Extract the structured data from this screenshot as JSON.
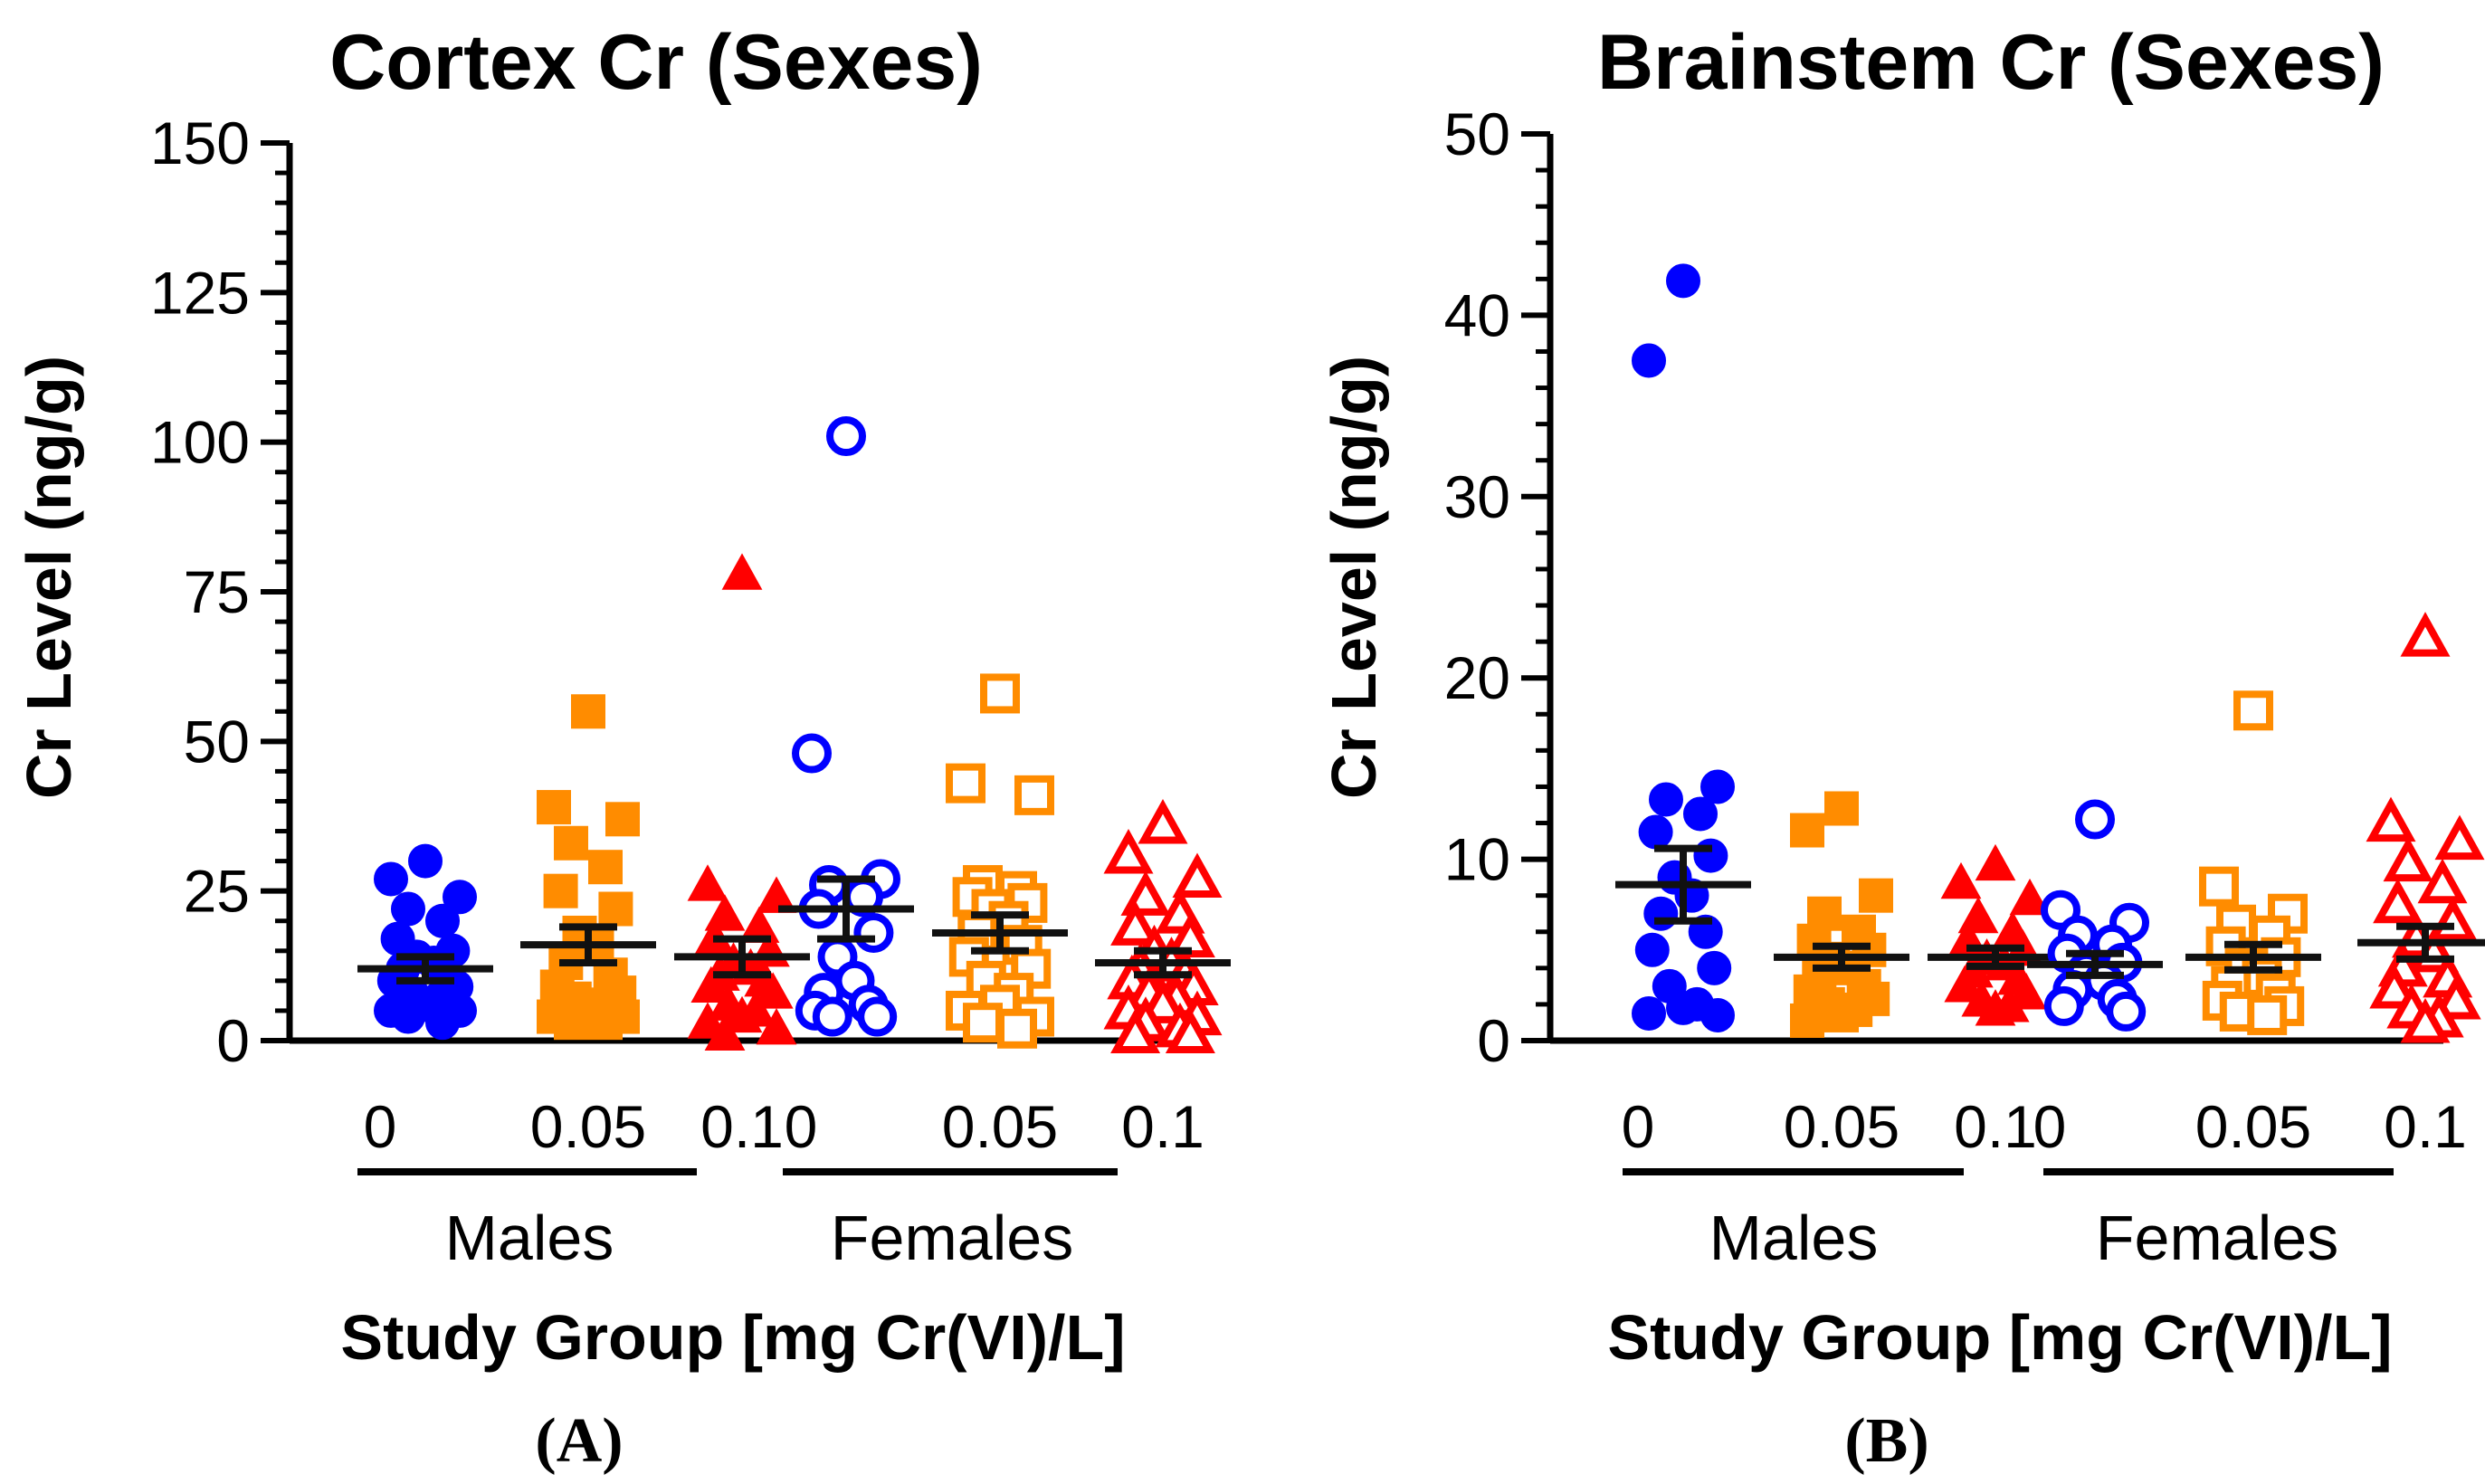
{
  "panels": [
    {
      "panel_label": "(A)",
      "chart_data": {
        "type": "scatter",
        "title": "Cortex Cr (Sexes)",
        "ylabel": "Cr Level (ng/g)",
        "xlabel": "Study Group [mg Cr(VI)/L]",
        "ylim": [
          0,
          150
        ],
        "yticks": [
          0,
          25,
          50,
          75,
          100,
          125,
          150
        ],
        "ytick_labels": [
          "0",
          "25",
          "50",
          "75",
          "100",
          "125",
          "150"
        ],
        "sex_labels": [
          "Males",
          "Females"
        ],
        "series": [
          {
            "sex": "Males",
            "dose": "0",
            "color": "#0000ff",
            "marker": "circle",
            "filled": true,
            "mean": 12,
            "sem": 2,
            "values": [
              30,
              27,
              24,
              22,
              20,
              17,
              15,
              14,
              13,
              12,
              11,
              10,
              9,
              8,
              7,
              6,
              5,
              5,
              4,
              3
            ]
          },
          {
            "sex": "Males",
            "dose": "0.05",
            "color": "#ff8c00",
            "marker": "square",
            "filled": true,
            "mean": 16,
            "sem": 3,
            "values": [
              55,
              39,
              37,
              33,
              29,
              25,
              22,
              18,
              16,
              13,
              11,
              9,
              8,
              7,
              6,
              5,
              4,
              4,
              3,
              3
            ]
          },
          {
            "sex": "Males",
            "dose": "0.1",
            "color": "#ff0000",
            "marker": "triangle",
            "filled": true,
            "mean": 14,
            "sem": 3,
            "values": [
              78,
              26,
              24,
              21,
              19,
              17,
              15,
              13,
              12,
              11,
              10,
              9,
              8,
              6,
              5,
              4,
              3,
              2,
              1
            ]
          },
          {
            "sex": "Females",
            "dose": "0",
            "color": "#0000ff",
            "marker": "circle",
            "filled": false,
            "mean": 22,
            "sem": 5,
            "values": [
              101,
              48,
              27,
              26,
              24,
              22,
              18,
              14,
              10,
              8,
              6,
              5,
              4,
              4
            ]
          },
          {
            "sex": "Females",
            "dose": "0.05",
            "color": "#ff8c00",
            "marker": "square",
            "filled": false,
            "mean": 18,
            "sem": 3,
            "values": [
              58,
              43,
              41,
              26,
              25,
              24,
              23,
              22,
              20,
              18,
              16,
              14,
              12,
              10,
              8,
              6,
              5,
              4,
              3,
              2
            ]
          },
          {
            "sex": "Females",
            "dose": "0.1",
            "color": "#ff0000",
            "marker": "triangle",
            "filled": false,
            "mean": 13,
            "sem": 2,
            "values": [
              36,
              31,
              27,
              24,
              21,
              19,
              17,
              15,
              13,
              12,
              11,
              10,
              9,
              8,
              7,
              6,
              5,
              4,
              3,
              2,
              1,
              1
            ]
          }
        ]
      }
    },
    {
      "panel_label": "(B)",
      "chart_data": {
        "type": "scatter",
        "title": "Brainstem Cr (Sexes)",
        "ylabel": "Cr Level (ng/g)",
        "xlabel": "Study Group [mg Cr(VI)/L]",
        "ylim": [
          0,
          50
        ],
        "yticks": [
          0,
          10,
          20,
          30,
          40,
          50
        ],
        "ytick_labels": [
          "0",
          "10",
          "20",
          "30",
          "40",
          "50"
        ],
        "sex_labels": [
          "Males",
          "Females"
        ],
        "series": [
          {
            "sex": "Males",
            "dose": "0",
            "color": "#0000ff",
            "marker": "circle",
            "filled": true,
            "mean": 8.6,
            "sem": 2.0,
            "values": [
              41.9,
              37.5,
              14.0,
              13.3,
              12.5,
              11.5,
              10.2,
              9.0,
              8.0,
              7.0,
              6.0,
              5.0,
              4.0,
              3.0,
              2.0,
              1.8,
              1.5,
              1.4
            ]
          },
          {
            "sex": "Males",
            "dose": "0.05",
            "color": "#ff8c00",
            "marker": "square",
            "filled": true,
            "mean": 4.6,
            "sem": 0.6,
            "values": [
              12.8,
              11.6,
              8.0,
              7.0,
              6.0,
              5.5,
              5.0,
              4.5,
              4.0,
              3.5,
              3.0,
              2.7,
              2.3,
              2.0,
              1.7,
              1.4,
              1.1
            ]
          },
          {
            "sex": "Males",
            "dose": "0.1",
            "color": "#ff0000",
            "marker": "triangle",
            "filled": true,
            "mean": 4.6,
            "sem": 0.5,
            "values": [
              9.7,
              8.7,
              7.8,
              6.8,
              6.0,
              5.5,
              5.0,
              4.5,
              4.2,
              3.8,
              3.4,
              3.0,
              2.6,
              2.2,
              1.9,
              1.7
            ]
          },
          {
            "sex": "Females",
            "dose": "0",
            "color": "#0000ff",
            "marker": "circle",
            "filled": false,
            "mean": 4.2,
            "sem": 0.6,
            "values": [
              12.2,
              7.2,
              6.5,
              5.8,
              5.3,
              4.8,
              4.3,
              3.8,
              3.3,
              2.8,
              2.3,
              1.9,
              1.6
            ]
          },
          {
            "sex": "Females",
            "dose": "0.05",
            "color": "#ff8c00",
            "marker": "square",
            "filled": false,
            "mean": 4.6,
            "sem": 0.7,
            "values": [
              18.2,
              8.5,
              7.0,
              6.4,
              5.8,
              5.2,
              4.6,
              4.0,
              3.5,
              3.0,
              2.6,
              2.2,
              1.9,
              1.6,
              1.4
            ]
          },
          {
            "sex": "Females",
            "dose": "0.1",
            "color": "#ff0000",
            "marker": "triangle",
            "filled": false,
            "mean": 5.4,
            "sem": 0.9,
            "values": [
              22.2,
              12.0,
              11.0,
              9.8,
              8.6,
              7.5,
              6.5,
              5.6,
              4.8,
              4.0,
              3.4,
              2.8,
              2.2,
              1.7,
              1.2,
              0.9
            ]
          }
        ]
      }
    }
  ]
}
